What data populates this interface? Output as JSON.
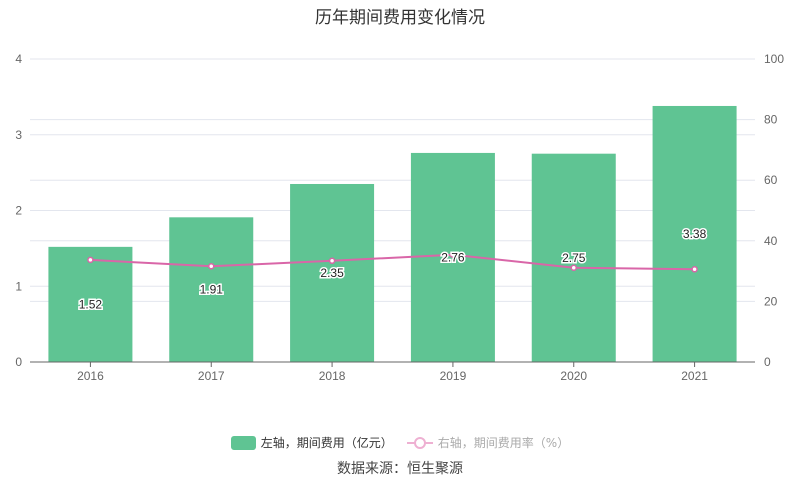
{
  "title": "历年期间费用变化情况",
  "source": "数据来源：恒生聚源",
  "chart_data": {
    "type": "bar+line",
    "title": "历年期间费用变化情况",
    "categories": [
      "2016",
      "2017",
      "2018",
      "2019",
      "2020",
      "2021"
    ],
    "series": [
      {
        "name": "左轴，期间费用（亿元）",
        "type": "bar",
        "axis": "left",
        "values": [
          1.52,
          1.91,
          2.35,
          2.76,
          2.75,
          3.38
        ],
        "color": "#5fc493"
      },
      {
        "name": "右轴，期间费用率（%）",
        "type": "line",
        "axis": "right",
        "values": [
          33.7,
          31.6,
          33.4,
          35.4,
          31.1,
          30.6
        ],
        "color": "#d966a8"
      }
    ],
    "left_axis": {
      "ylim": [
        0,
        4
      ],
      "ticks": [
        "0",
        "1",
        "2",
        "3",
        "4"
      ]
    },
    "right_axis": {
      "ylim": [
        0,
        100
      ],
      "ticks": [
        "0",
        "20",
        "40",
        "60",
        "80",
        "100"
      ]
    },
    "grid": true,
    "legend_position": "bottom"
  }
}
